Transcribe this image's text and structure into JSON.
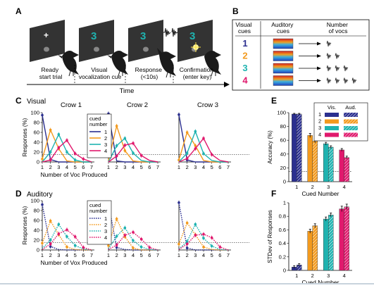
{
  "colors": {
    "c1": "#2b2f8f",
    "c2": "#f39a1e",
    "c3": "#1fb3b0",
    "c4": "#e0196d",
    "screen": "#333333",
    "axis": "#000000",
    "bottom_rule": "#c8d3dd"
  },
  "panelA": {
    "label": "A",
    "screens": [
      {
        "glyph": "+",
        "glyph_color": "#ffffff"
      },
      {
        "glyph": "3",
        "glyph_color": "#1fb3b0"
      },
      {
        "glyph": "3",
        "glyph_color": "#1fb3b0"
      },
      {
        "glyph": "3",
        "glyph_color": "#1fb3b0"
      }
    ],
    "steps": [
      {
        "lines": [
          "Ready",
          "start trial"
        ]
      },
      {
        "lines": [
          "Visual",
          "vocalization cue"
        ]
      },
      {
        "lines": [
          "Response",
          "(<10s)"
        ]
      },
      {
        "lines": [
          "Confirmation",
          "(enter key)"
        ]
      }
    ],
    "time_label": "Time",
    "icons": [
      "crow-icon",
      "sound-wave-icon",
      "key-press-flash-icon"
    ]
  },
  "panelB": {
    "label": "B",
    "headers": [
      [
        "Visual",
        "cues"
      ],
      [
        "Auditory",
        "cues"
      ],
      [
        "Number",
        "of vocs"
      ]
    ],
    "rows": [
      {
        "digit": "1",
        "color": "#2b2f8f",
        "vocs": 1
      },
      {
        "digit": "2",
        "color": "#f39a1e",
        "vocs": 2
      },
      {
        "digit": "3",
        "color": "#1fb3b0",
        "vocs": 3
      },
      {
        "digit": "4",
        "color": "#e0196d",
        "vocs": 4
      }
    ]
  },
  "panelC": {
    "label": "C",
    "modality": "Visual",
    "legend_title": [
      "cued",
      "number"
    ],
    "legend_items": [
      "1",
      "2",
      "3",
      "4"
    ]
  },
  "panelD": {
    "label": "D",
    "modality": "Auditory",
    "legend_title": [
      "cued",
      "number"
    ],
    "legend_items": [
      "1",
      "2",
      "3",
      "4"
    ]
  },
  "panelE": {
    "label": "E",
    "legend_header": [
      "Vis.",
      "Aud."
    ],
    "legend_items": [
      "1",
      "2",
      "3",
      "4"
    ]
  },
  "panelF": {
    "label": "F"
  },
  "chart_data": [
    {
      "id": "C-crow1",
      "type": "line",
      "title": "Crow 1",
      "xlabel": "Number of Voc Produced",
      "ylabel": "Responses (%)",
      "xlim": [
        1,
        7
      ],
      "ylim": [
        0,
        100
      ],
      "style": "solid",
      "chance": 15,
      "x": [
        1,
        2,
        3,
        4,
        5,
        6,
        7
      ],
      "x_ticks": [
        "1",
        "2",
        "3",
        "4",
        "5",
        "6",
        "7"
      ],
      "y_ticks": [
        "0",
        "20",
        "40",
        "60",
        "80",
        "100"
      ],
      "series": [
        {
          "name": "1",
          "color": "#2b2f8f",
          "values": [
            95,
            5,
            0,
            0,
            0,
            0,
            0
          ]
        },
        {
          "name": "2",
          "color": "#f39a1e",
          "values": [
            6,
            65,
            27,
            2,
            0,
            0,
            0
          ]
        },
        {
          "name": "3",
          "color": "#1fb3b0",
          "values": [
            0,
            20,
            56,
            20,
            4,
            0,
            0
          ]
        },
        {
          "name": "4",
          "color": "#e0196d",
          "values": [
            0,
            4,
            29,
            44,
            17,
            6,
            0
          ]
        }
      ]
    },
    {
      "id": "C-crow2",
      "type": "line",
      "title": "Crow 2",
      "xlim": [
        1,
        7
      ],
      "ylim": [
        0,
        100
      ],
      "style": "solid",
      "chance": 15,
      "x": [
        1,
        2,
        3,
        4,
        5,
        6,
        7
      ],
      "x_ticks": [
        "1",
        "2",
        "3",
        "4",
        "5",
        "6",
        "7"
      ],
      "series": [
        {
          "name": "1",
          "color": "#2b2f8f",
          "values": [
            98,
            2,
            0,
            0,
            0,
            0,
            0
          ]
        },
        {
          "name": "2",
          "color": "#f39a1e",
          "values": [
            3,
            73,
            23,
            2,
            0,
            0,
            0
          ]
        },
        {
          "name": "3",
          "color": "#1fb3b0",
          "values": [
            0,
            33,
            48,
            18,
            3,
            0,
            0
          ]
        },
        {
          "name": "4",
          "color": "#e0196d",
          "values": [
            0,
            12,
            34,
            38,
            13,
            3,
            0
          ]
        }
      ]
    },
    {
      "id": "C-crow3",
      "type": "line",
      "title": "Crow 3",
      "xlim": [
        1,
        7
      ],
      "ylim": [
        0,
        100
      ],
      "style": "solid",
      "chance": 15,
      "x": [
        1,
        2,
        3,
        4,
        5,
        6,
        7
      ],
      "x_ticks": [
        "1",
        "2",
        "3",
        "4",
        "5",
        "6",
        "7"
      ],
      "series": [
        {
          "name": "1",
          "color": "#2b2f8f",
          "values": [
            96,
            4,
            0,
            0,
            0,
            0,
            0
          ]
        },
        {
          "name": "2",
          "color": "#f39a1e",
          "values": [
            4,
            60,
            33,
            3,
            0,
            0,
            0
          ]
        },
        {
          "name": "3",
          "color": "#1fb3b0",
          "values": [
            0,
            18,
            62,
            17,
            3,
            0,
            0
          ]
        },
        {
          "name": "4",
          "color": "#e0196d",
          "values": [
            0,
            7,
            27,
            48,
            15,
            3,
            0
          ]
        }
      ]
    },
    {
      "id": "D-crow1",
      "type": "line",
      "xlabel": "Number of Vox Produced",
      "ylabel": "Responses (%)",
      "xlim": [
        1,
        7
      ],
      "ylim": [
        0,
        100
      ],
      "style": "dotted",
      "chance": 15,
      "x": [
        1,
        2,
        3,
        4,
        5,
        6,
        7
      ],
      "x_ticks": [
        "1",
        "2",
        "3",
        "4",
        "5",
        "6",
        "7"
      ],
      "y_ticks": [
        "0",
        "20",
        "40",
        "60",
        "80",
        "100"
      ],
      "series": [
        {
          "name": "1",
          "color": "#2b2f8f",
          "values": [
            92,
            7,
            1,
            0,
            0,
            0,
            0
          ]
        },
        {
          "name": "2",
          "color": "#f39a1e",
          "values": [
            14,
            59,
            31,
            6,
            1,
            0,
            0
          ]
        },
        {
          "name": "3",
          "color": "#1fb3b0",
          "values": [
            3,
            20,
            52,
            27,
            9,
            2,
            0
          ]
        },
        {
          "name": "4",
          "color": "#e0196d",
          "values": [
            1,
            12,
            33,
            41,
            27,
            5,
            0
          ]
        }
      ]
    },
    {
      "id": "D-crow2",
      "type": "line",
      "xlim": [
        1,
        7
      ],
      "ylim": [
        0,
        100
      ],
      "style": "dotted",
      "chance": 15,
      "x": [
        1,
        2,
        3,
        4,
        5,
        6,
        7
      ],
      "x_ticks": [
        "1",
        "2",
        "3",
        "4",
        "5",
        "6",
        "7"
      ],
      "series": [
        {
          "name": "1",
          "color": "#2b2f8f",
          "values": [
            94,
            5,
            1,
            0,
            0,
            0,
            0
          ]
        },
        {
          "name": "2",
          "color": "#f39a1e",
          "values": [
            9,
            63,
            27,
            4,
            0,
            0,
            0
          ]
        },
        {
          "name": "3",
          "color": "#1fb3b0",
          "values": [
            2,
            28,
            45,
            19,
            6,
            1,
            0
          ]
        },
        {
          "name": "4",
          "color": "#e0196d",
          "values": [
            1,
            10,
            30,
            36,
            22,
            5,
            0
          ]
        }
      ]
    },
    {
      "id": "D-crow3",
      "type": "line",
      "xlim": [
        1,
        7
      ],
      "ylim": [
        0,
        100
      ],
      "style": "dotted",
      "chance": 15,
      "x": [
        1,
        2,
        3,
        4,
        5,
        6,
        7
      ],
      "x_ticks": [
        "1",
        "2",
        "3",
        "4",
        "5",
        "6",
        "7"
      ],
      "series": [
        {
          "name": "1",
          "color": "#2b2f8f",
          "values": [
            96,
            4,
            0,
            0,
            0,
            0,
            0
          ]
        },
        {
          "name": "2",
          "color": "#f39a1e",
          "values": [
            12,
            55,
            31,
            6,
            1,
            0,
            0
          ]
        },
        {
          "name": "3",
          "color": "#1fb3b0",
          "values": [
            2,
            17,
            52,
            24,
            8,
            1,
            0
          ]
        },
        {
          "name": "4",
          "color": "#e0196d",
          "values": [
            1,
            12,
            30,
            32,
            25,
            6,
            0
          ]
        }
      ]
    },
    {
      "id": "E",
      "type": "bar",
      "xlabel": "Cued Number",
      "ylabel": "Accuracy (%)",
      "ylim": [
        0,
        100
      ],
      "categories": [
        "1",
        "2",
        "3",
        "4"
      ],
      "y_ticks": [
        "0",
        "20",
        "40",
        "60",
        "80",
        "100"
      ],
      "series": [
        {
          "name": "Vis.",
          "values": [
            98,
            67,
            55,
            46
          ],
          "errors": [
            1,
            3,
            2,
            2
          ]
        },
        {
          "name": "Aud.",
          "values": [
            98,
            59,
            50,
            35
          ],
          "errors": [
            1,
            3,
            2,
            2
          ]
        }
      ],
      "chance": 15
    },
    {
      "id": "F",
      "type": "bar",
      "xlabel": "Cued Number",
      "ylabel": "STDev of Responses",
      "ylim": [
        0,
        1
      ],
      "categories": [
        "1",
        "2",
        "3",
        "4"
      ],
      "y_ticks": [
        "0",
        "0.2",
        "0.4",
        "0.6",
        "0.8",
        "1"
      ],
      "series": [
        {
          "name": "Vis.",
          "values": [
            0.05,
            0.58,
            0.76,
            0.91
          ],
          "errors": [
            0.02,
            0.03,
            0.03,
            0.04
          ]
        },
        {
          "name": "Aud.",
          "values": [
            0.08,
            0.66,
            0.82,
            0.94
          ],
          "errors": [
            0.02,
            0.03,
            0.03,
            0.04
          ]
        }
      ]
    }
  ]
}
